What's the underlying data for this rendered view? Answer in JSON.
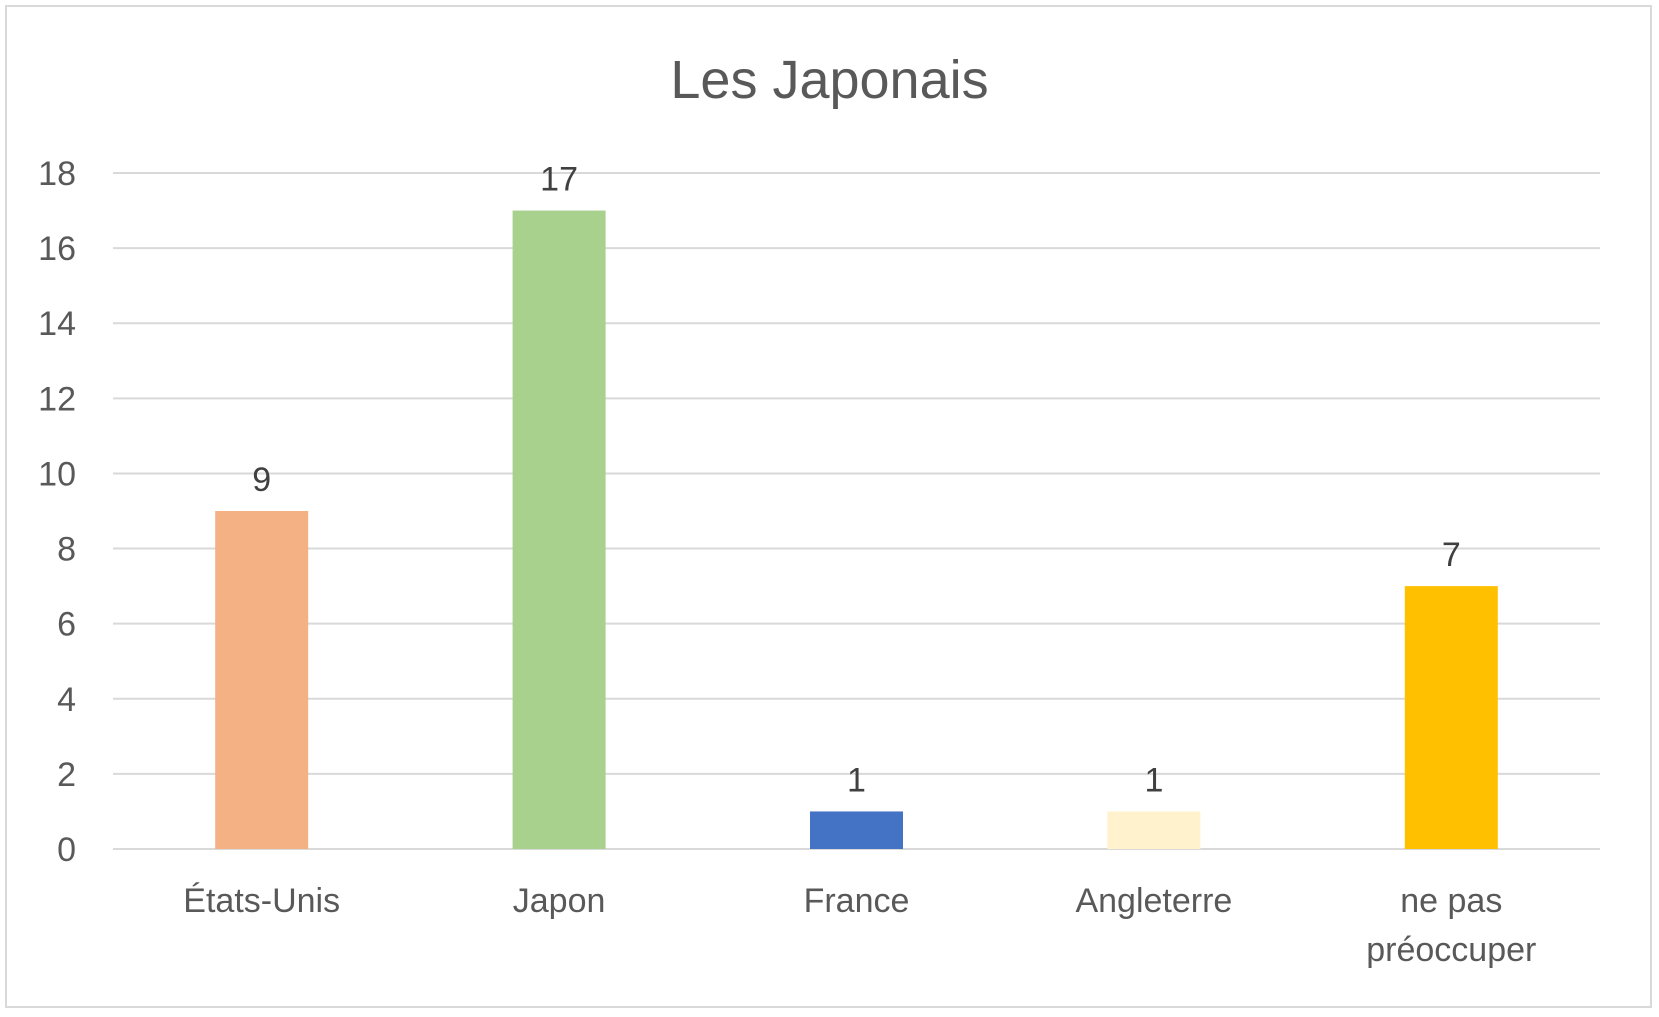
{
  "chart_data": {
    "type": "bar",
    "title": "Les Japonais",
    "xlabel": "",
    "ylabel": "",
    "categories": [
      "États-Unis",
      "Japon",
      "France",
      "Angleterre",
      "ne pas préoccuper"
    ],
    "category_lines": [
      [
        "États-Unis"
      ],
      [
        "Japon"
      ],
      [
        "France"
      ],
      [
        "Angleterre"
      ],
      [
        "ne pas",
        "préoccuper"
      ]
    ],
    "values": [
      9,
      17,
      1,
      1,
      7
    ],
    "data_labels": [
      "9",
      "17",
      "1",
      "1",
      "7"
    ],
    "bar_colors": [
      "#F4B183",
      "#A9D18E",
      "#4472C4",
      "#FFF2CC",
      "#FFC000"
    ],
    "ylim": [
      0,
      18
    ],
    "yticks": [
      0,
      2,
      4,
      6,
      8,
      10,
      12,
      14,
      16,
      18
    ],
    "grid": true,
    "legend": "none"
  }
}
